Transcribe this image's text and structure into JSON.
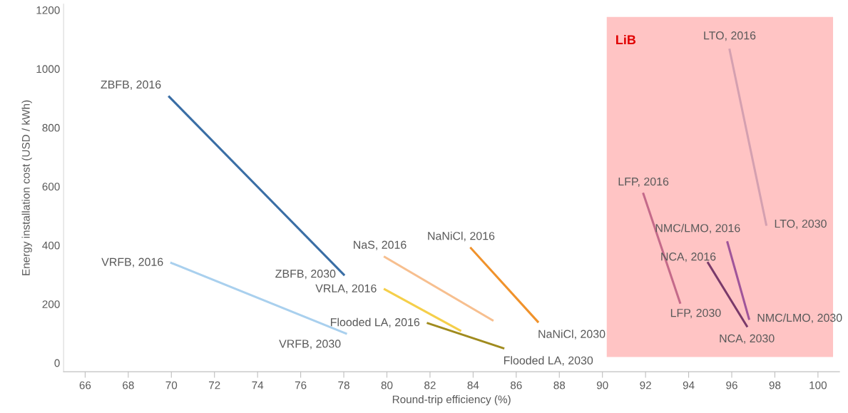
{
  "chart_data": {
    "type": "line",
    "xlabel": "Round-trip efficiency (%)",
    "ylabel": "Energy installation cost (USD / kWh)",
    "xlim": [
      65,
      101
    ],
    "ylim": [
      -30,
      1220
    ],
    "xticks": [
      66,
      68,
      70,
      72,
      74,
      76,
      78,
      80,
      82,
      84,
      86,
      88,
      90,
      92,
      94,
      96,
      98,
      100
    ],
    "yticks": [
      0,
      200,
      400,
      600,
      800,
      1000,
      1200
    ],
    "grid": false,
    "marker": "none",
    "line_style": "solid",
    "bands": [
      {
        "axis": "x",
        "from": 90.2,
        "to": 100.7,
        "label": "LiB",
        "color": "#ffc4c4"
      }
    ],
    "series": [
      {
        "color": "#3a6ea5",
        "x": [
          69.9,
          78.0
        ],
        "values": [
          905,
          300
        ]
      },
      {
        "color": "#a9d0ee",
        "x": [
          70.0,
          78.1
        ],
        "values": [
          340,
          100
        ]
      },
      {
        "color": "#f7bf8f",
        "x": [
          79.9,
          84.9
        ],
        "values": [
          360,
          145
        ]
      },
      {
        "color": "#f5cf4a",
        "x": [
          79.9,
          83.4
        ],
        "values": [
          250,
          110
        ]
      },
      {
        "color": "#a08b1e",
        "x": [
          81.9,
          85.4
        ],
        "values": [
          135,
          50
        ]
      },
      {
        "color": "#f0922b",
        "x": [
          83.9,
          87.0
        ],
        "values": [
          390,
          140
        ]
      },
      {
        "color": "#c46a8a",
        "x": [
          91.9,
          93.6
        ],
        "values": [
          575,
          205
        ]
      },
      {
        "color": "#d4a0b0",
        "x": [
          95.9,
          97.6
        ],
        "values": [
          1065,
          470
        ]
      },
      {
        "color": "#a0559a",
        "x": [
          95.8,
          96.8
        ],
        "values": [
          410,
          150
        ]
      },
      {
        "color": "#7a3a6a",
        "x": [
          94.9,
          96.7
        ],
        "values": [
          340,
          125
        ]
      }
    ],
    "annotations": [
      {
        "text": "ZBFB, 2016",
        "x": 69.9,
        "y": 905
      },
      {
        "text": "ZBFB, 2030",
        "x": 78.0,
        "y": 300
      },
      {
        "text": "VRFB, 2016",
        "x": 70.0,
        "y": 340
      },
      {
        "text": "VRFB, 2030",
        "x": 78.1,
        "y": 100
      },
      {
        "text": "NaS, 2016",
        "x": 79.9,
        "y": 360
      },
      {
        "text": "VRLA, 2016",
        "x": 79.9,
        "y": 250
      },
      {
        "text": "Flooded LA, 2016",
        "x": 81.9,
        "y": 135
      },
      {
        "text": "Flooded LA, 2030",
        "x": 85.4,
        "y": 50
      },
      {
        "text": "NaNiCl, 2016",
        "x": 83.9,
        "y": 390
      },
      {
        "text": "NaNiCl, 2030",
        "x": 87.0,
        "y": 140
      },
      {
        "text": "LFP, 2016",
        "x": 91.9,
        "y": 575
      },
      {
        "text": "LFP, 2030",
        "x": 93.6,
        "y": 205
      },
      {
        "text": "LTO, 2016",
        "x": 95.9,
        "y": 1065
      },
      {
        "text": "LTO, 2030",
        "x": 97.6,
        "y": 470
      },
      {
        "text": "NMC/LMO, 2016",
        "x": 95.8,
        "y": 410
      },
      {
        "text": "NMC/LMO, 2030",
        "x": 96.8,
        "y": 150
      },
      {
        "text": "NCA, 2016",
        "x": 94.9,
        "y": 340
      },
      {
        "text": "NCA, 2030",
        "x": 96.7,
        "y": 125
      }
    ]
  }
}
